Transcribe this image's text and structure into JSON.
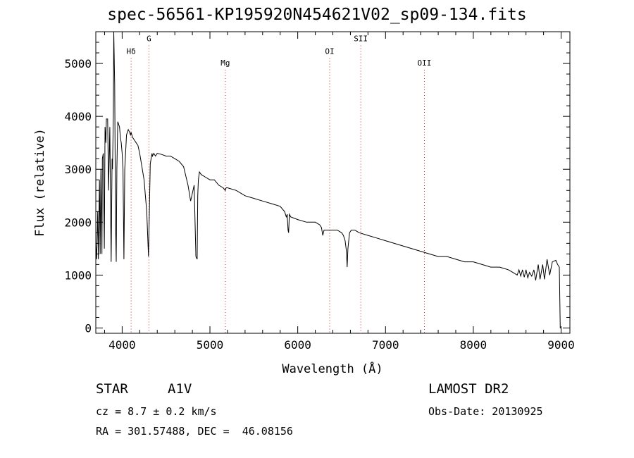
{
  "chart_data": {
    "type": "line",
    "title": "spec-56561-KP195920N454621V02_sp09-134.fits",
    "xlabel": "Wavelength (Å)",
    "ylabel": "Flux (relative)",
    "xlim": [
      3700,
      9100
    ],
    "ylim": [
      -100,
      5600
    ],
    "grid": false,
    "xticks": [
      4000,
      5000,
      6000,
      7000,
      8000,
      9000
    ],
    "yticks": [
      0,
      1000,
      2000,
      3000,
      4000,
      5000
    ],
    "lines": [
      {
        "label": "Hδ",
        "x": 4102,
        "label_flux": 5180
      },
      {
        "label": "G",
        "x": 4305,
        "label_flux": 5420
      },
      {
        "label": "Mg",
        "x": 5175,
        "label_flux": 4960
      },
      {
        "label": "OI",
        "x": 6364,
        "label_flux": 5180
      },
      {
        "label": "SII",
        "x": 6718,
        "label_flux": 5420
      },
      {
        "label": "OII",
        "x": 7443,
        "label_flux": 4960
      }
    ],
    "series": [
      {
        "x": [
          3700,
          3710,
          3722,
          3730,
          3742,
          3750,
          3758,
          3770,
          3775,
          3785,
          3797,
          3805,
          3815,
          3820,
          3835,
          3845,
          3860,
          3875,
          3885,
          3890,
          3895,
          3900,
          3905,
          3915,
          3925,
          3933,
          3940,
          3950,
          3960,
          3970,
          3980,
          3990,
          4000,
          4010,
          4020,
          4030,
          4050,
          4070,
          4085,
          4095,
          4102,
          4110,
          4120,
          4140,
          4160,
          4180,
          4200,
          4220,
          4250,
          4280,
          4300,
          4320,
          4335,
          4340,
          4345,
          4360,
          4380,
          4400,
          4450,
          4500,
          4550,
          4600,
          4650,
          4700,
          4750,
          4780,
          4820,
          4840,
          4855,
          4861,
          4868,
          4880,
          4900,
          4950,
          5000,
          5050,
          5100,
          5150,
          5175,
          5185,
          5200,
          5300,
          5400,
          5500,
          5600,
          5700,
          5800,
          5850,
          5870,
          5880,
          5890,
          5896,
          5905,
          5920,
          6000,
          6100,
          6200,
          6250,
          6270,
          6285,
          6300,
          6350,
          6400,
          6450,
          6500,
          6520,
          6540,
          6555,
          6563,
          6572,
          6590,
          6610,
          6650,
          6700,
          6800,
          6900,
          7000,
          7100,
          7200,
          7300,
          7400,
          7500,
          7600,
          7700,
          7800,
          7900,
          8000,
          8100,
          8200,
          8300,
          8400,
          8450,
          8500,
          8520,
          8540,
          8560,
          8580,
          8600,
          8620,
          8640,
          8665,
          8690,
          8710,
          8740,
          8760,
          8790,
          8810,
          8840,
          8870,
          8900,
          8940,
          8960,
          8980,
          8990,
          9000
        ],
        "values": [
          1600,
          1300,
          2200,
          1300,
          2800,
          1400,
          3000,
          1400,
          3200,
          3300,
          1500,
          3800,
          3500,
          3950,
          3950,
          2600,
          3800,
          1250,
          3200,
          3000,
          3500,
          4000,
          5900,
          4600,
          2000,
          1250,
          3000,
          3900,
          3850,
          3800,
          3600,
          3500,
          3300,
          3000,
          1300,
          3000,
          3650,
          3750,
          3700,
          3650,
          3700,
          3650,
          3600,
          3550,
          3500,
          3450,
          3300,
          3100,
          2800,
          2200,
          1350,
          3100,
          3250,
          3300,
          3250,
          3300,
          3250,
          3300,
          3280,
          3250,
          3250,
          3200,
          3150,
          3050,
          2700,
          2400,
          2700,
          1350,
          1300,
          2500,
          2800,
          2950,
          2900,
          2850,
          2800,
          2800,
          2700,
          2650,
          2600,
          2650,
          2650,
          2600,
          2500,
          2450,
          2400,
          2350,
          2300,
          2200,
          2100,
          2150,
          1850,
          1800,
          2150,
          2100,
          2050,
          2000,
          2000,
          1950,
          1900,
          1750,
          1850,
          1850,
          1850,
          1850,
          1800,
          1750,
          1650,
          1450,
          1150,
          1500,
          1800,
          1850,
          1850,
          1800,
          1750,
          1700,
          1650,
          1600,
          1550,
          1500,
          1450,
          1400,
          1350,
          1350,
          1300,
          1250,
          1250,
          1200,
          1150,
          1150,
          1100,
          1050,
          1000,
          1100,
          980,
          1100,
          960,
          1100,
          950,
          1050,
          980,
          1100,
          900,
          1200,
          920,
          1200,
          920,
          1300,
          1000,
          1250,
          1280,
          1200,
          1150,
          0,
          0
        ]
      }
    ]
  },
  "info": {
    "object_type": "STAR",
    "subclass": "A1V",
    "survey": "LAMOST DR2",
    "velocity": "cz = 8.7 ± 0.2 km/s",
    "obs_date": "Obs-Date: 20130925",
    "coords": "RA = 301.57488, DEC =  46.08156"
  }
}
